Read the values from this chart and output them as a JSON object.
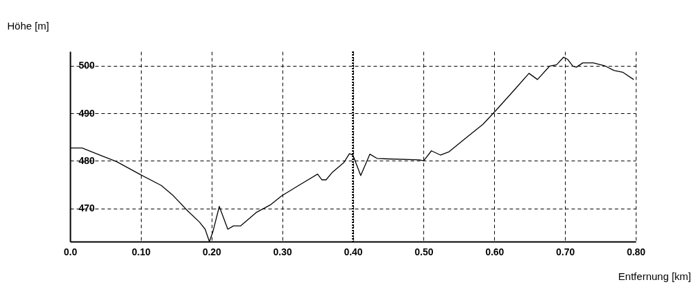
{
  "chart_data": {
    "type": "line",
    "xlabel": "Entfernung [km]",
    "ylabel": "Höhe [m]",
    "xlim": [
      0,
      0.8
    ],
    "ylim": [
      463,
      503
    ],
    "xticks": [
      {
        "value": 0,
        "label": "0.0"
      },
      {
        "value": 0.1,
        "label": "0.10"
      },
      {
        "value": 0.2,
        "label": "0.20"
      },
      {
        "value": 0.3,
        "label": "0.30"
      },
      {
        "value": 0.4,
        "label": "0.40"
      },
      {
        "value": 0.5,
        "label": "0.50"
      },
      {
        "value": 0.6,
        "label": "0.60"
      },
      {
        "value": 0.7,
        "label": "0.70"
      },
      {
        "value": 0.8,
        "label": "0.80"
      }
    ],
    "yticks": [
      470,
      480,
      490,
      500
    ],
    "grid": true,
    "marker": "none",
    "line_style": "solid",
    "ref_lines": [
      {
        "axis": "x",
        "value": 0.4,
        "line_style": "dotted",
        "color": "#000000"
      }
    ],
    "x": [
      0.0,
      0.017,
      0.037,
      0.066,
      0.098,
      0.129,
      0.145,
      0.166,
      0.183,
      0.191,
      0.197,
      0.202,
      0.211,
      0.223,
      0.231,
      0.241,
      0.264,
      0.283,
      0.299,
      0.322,
      0.35,
      0.356,
      0.362,
      0.371,
      0.387,
      0.395,
      0.4,
      0.411,
      0.424,
      0.434,
      0.448,
      0.494,
      0.5,
      0.511,
      0.524,
      0.536,
      0.558,
      0.584,
      0.601,
      0.627,
      0.649,
      0.661,
      0.678,
      0.688,
      0.698,
      0.704,
      0.711,
      0.716,
      0.725,
      0.74,
      0.756,
      0.769,
      0.782,
      0.797
    ],
    "series": [
      {
        "color": "#000000",
        "values": [
          482.7,
          482.7,
          481.5,
          479.8,
          477.2,
          474.8,
          472.8,
          469.5,
          467.1,
          465.6,
          463.0,
          465.1,
          470.4,
          465.6,
          466.3,
          466.3,
          469.2,
          470.7,
          472.6,
          474.7,
          477.2,
          476.0,
          476.0,
          477.6,
          479.6,
          481.5,
          481.2,
          476.9,
          481.4,
          480.5,
          480.4,
          480.2,
          480.0,
          482.1,
          481.2,
          481.9,
          484.6,
          487.7,
          490.4,
          494.7,
          498.4,
          497.1,
          499.9,
          500.2,
          501.8,
          501.3,
          499.9,
          499.7,
          500.6,
          500.6,
          500.0,
          499.0,
          498.6,
          497.1
        ]
      }
    ]
  }
}
